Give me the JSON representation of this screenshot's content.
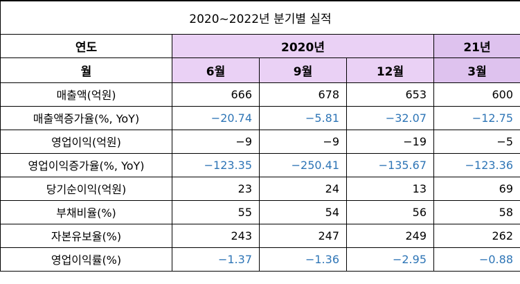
{
  "table": {
    "title": "2020~2022년 분기별 실적",
    "header_year_label": "연도",
    "header_month_label": "월",
    "year_groups": [
      {
        "label": "2020년",
        "span": 3
      },
      {
        "label": "21년",
        "span": 1
      }
    ],
    "months": [
      "6월",
      "9월",
      "12월",
      "3월"
    ],
    "rows": [
      {
        "label": "매출액(억원)",
        "values": [
          "666",
          "678",
          "653",
          "600"
        ]
      },
      {
        "label": "매출액증가율(%, YoY)",
        "values": [
          "−20.74",
          "−5.81",
          "−32.07",
          "−12.75"
        ]
      },
      {
        "label": "영업이익(억원)",
        "values": [
          "−9",
          "−9",
          "−19",
          "−5"
        ]
      },
      {
        "label": "영업이익증가율(%, YoY)",
        "values": [
          "−123.35",
          "−250.41",
          "−135.67",
          "−123.36"
        ]
      },
      {
        "label": "당기순이익(억원)",
        "values": [
          "23",
          "24",
          "13",
          "69"
        ]
      },
      {
        "label": "부채비율(%)",
        "values": [
          "55",
          "54",
          "56",
          "58"
        ]
      },
      {
        "label": "자본유보율(%)",
        "values": [
          "243",
          "247",
          "249",
          "262"
        ]
      },
      {
        "label": "영업이익률(%)",
        "values": [
          "−1.37",
          "−1.36",
          "−2.95",
          "−0.88"
        ]
      }
    ],
    "colors": {
      "header_purple": "#ead1f5",
      "header_purple_2021": "#dec2ee",
      "negative_blue": "#2e75b6"
    }
  },
  "chart_data": {
    "type": "table",
    "title": "2020~2022년 분기별 실적",
    "columns": [
      "2020년 6월",
      "2020년 9월",
      "2020년 12월",
      "21년 3월"
    ],
    "series": [
      {
        "name": "매출액(억원)",
        "values": [
          666,
          678,
          653,
          600
        ]
      },
      {
        "name": "매출액증가율(%, YoY)",
        "values": [
          -20.74,
          -5.81,
          -32.07,
          -12.75
        ]
      },
      {
        "name": "영업이익(억원)",
        "values": [
          -9,
          -9,
          -19,
          -5
        ]
      },
      {
        "name": "영업이익증가율(%, YoY)",
        "values": [
          -123.35,
          -250.41,
          -135.67,
          -123.36
        ]
      },
      {
        "name": "당기순이익(억원)",
        "values": [
          23,
          24,
          13,
          69
        ]
      },
      {
        "name": "부채비율(%)",
        "values": [
          55,
          54,
          56,
          58
        ]
      },
      {
        "name": "자본유보율(%)",
        "values": [
          243,
          247,
          249,
          262
        ]
      },
      {
        "name": "영업이익률(%)",
        "values": [
          -1.37,
          -1.36,
          -2.95,
          -0.88
        ]
      }
    ]
  }
}
